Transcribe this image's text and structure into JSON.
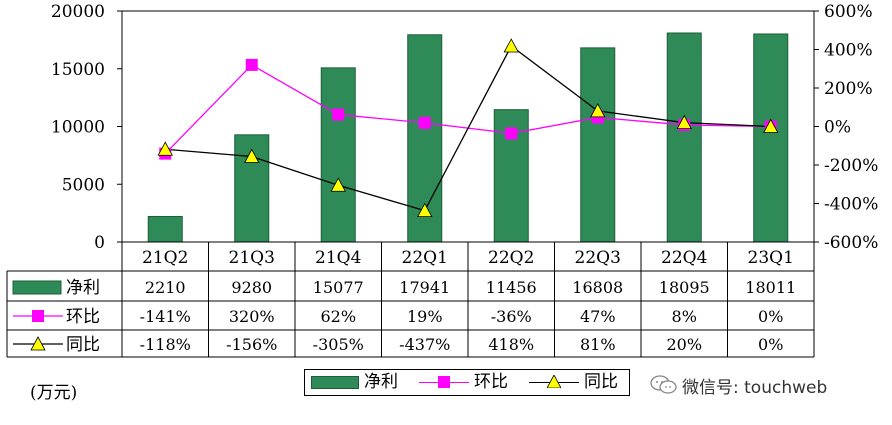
{
  "chart_data": {
    "type": "bar",
    "categories": [
      "21Q2",
      "21Q3",
      "21Q4",
      "22Q1",
      "22Q2",
      "22Q3",
      "22Q4",
      "23Q1"
    ],
    "series": [
      {
        "name": "净利",
        "type": "bar",
        "axis": "left",
        "color": "#2e8b57",
        "values": [
          2210,
          9280,
          15077,
          17941,
          11456,
          16808,
          18095,
          18011
        ],
        "labels": [
          "2210",
          "9280",
          "15077",
          "17941",
          "11456",
          "16808",
          "18095",
          "18011"
        ]
      },
      {
        "name": "环比",
        "type": "line",
        "axis": "right",
        "color": "#ff00ff",
        "marker": "square",
        "values": [
          -141,
          320,
          62,
          19,
          -36,
          47,
          8,
          0
        ],
        "labels": [
          "-141%",
          "320%",
          "62%",
          "19%",
          "-36%",
          "47%",
          "8%",
          "0%"
        ]
      },
      {
        "name": "同比",
        "type": "line",
        "axis": "right",
        "color": "#000000",
        "marker": "triangle",
        "values": [
          -118,
          -156,
          -305,
          -437,
          418,
          81,
          20,
          0
        ],
        "labels": [
          "-118%",
          "-156%",
          "-305%",
          "-437%",
          "418%",
          "81%",
          "20%",
          "0%"
        ]
      }
    ],
    "y_left": {
      "range": [
        0,
        20000
      ],
      "ticks": [
        "0",
        "5000",
        "10000",
        "15000",
        "20000"
      ]
    },
    "y_right": {
      "range": [
        -600,
        600
      ],
      "ticks": [
        "-600%",
        "-400%",
        "-200%",
        "0%",
        "200%",
        "400%",
        "600%"
      ]
    },
    "unit_label": "(万元)",
    "legend": [
      "净利",
      "环比",
      "同比"
    ]
  },
  "watermark": "微信号: touchweb"
}
